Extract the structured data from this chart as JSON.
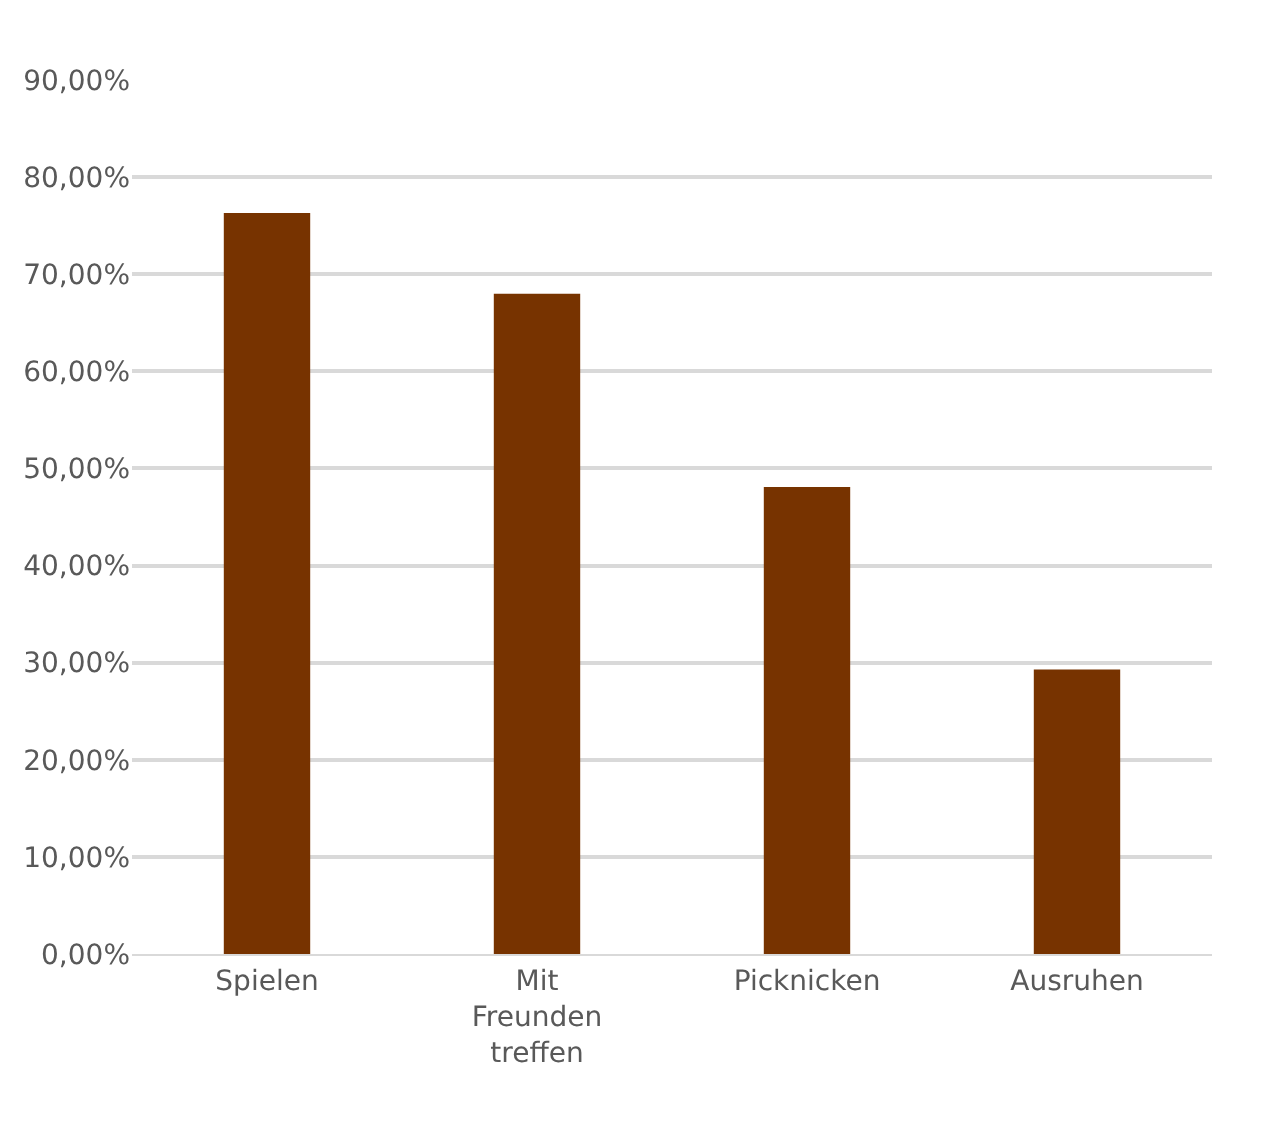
{
  "chart_data": {
    "type": "bar",
    "categories": [
      "Spielen",
      "Mit\nFreunden\ntreffen",
      "Picknicken",
      "Ausruhen"
    ],
    "values": [
      76.3,
      68.0,
      48.1,
      29.3
    ],
    "color": "#773300",
    "ylim": [
      0,
      90
    ],
    "yticks": [
      {
        "value": 0,
        "label": "0,00%"
      },
      {
        "value": 10,
        "label": "10,00%"
      },
      {
        "value": 20,
        "label": "20,00%"
      },
      {
        "value": 30,
        "label": "30,00%"
      },
      {
        "value": 40,
        "label": "40,00%"
      },
      {
        "value": 50,
        "label": "50,00%"
      },
      {
        "value": 60,
        "label": "60,00%"
      },
      {
        "value": 70,
        "label": "70,00%"
      },
      {
        "value": 80,
        "label": "80,00%"
      },
      {
        "value": 90,
        "label": "90,00%"
      }
    ],
    "grid": "y"
  }
}
